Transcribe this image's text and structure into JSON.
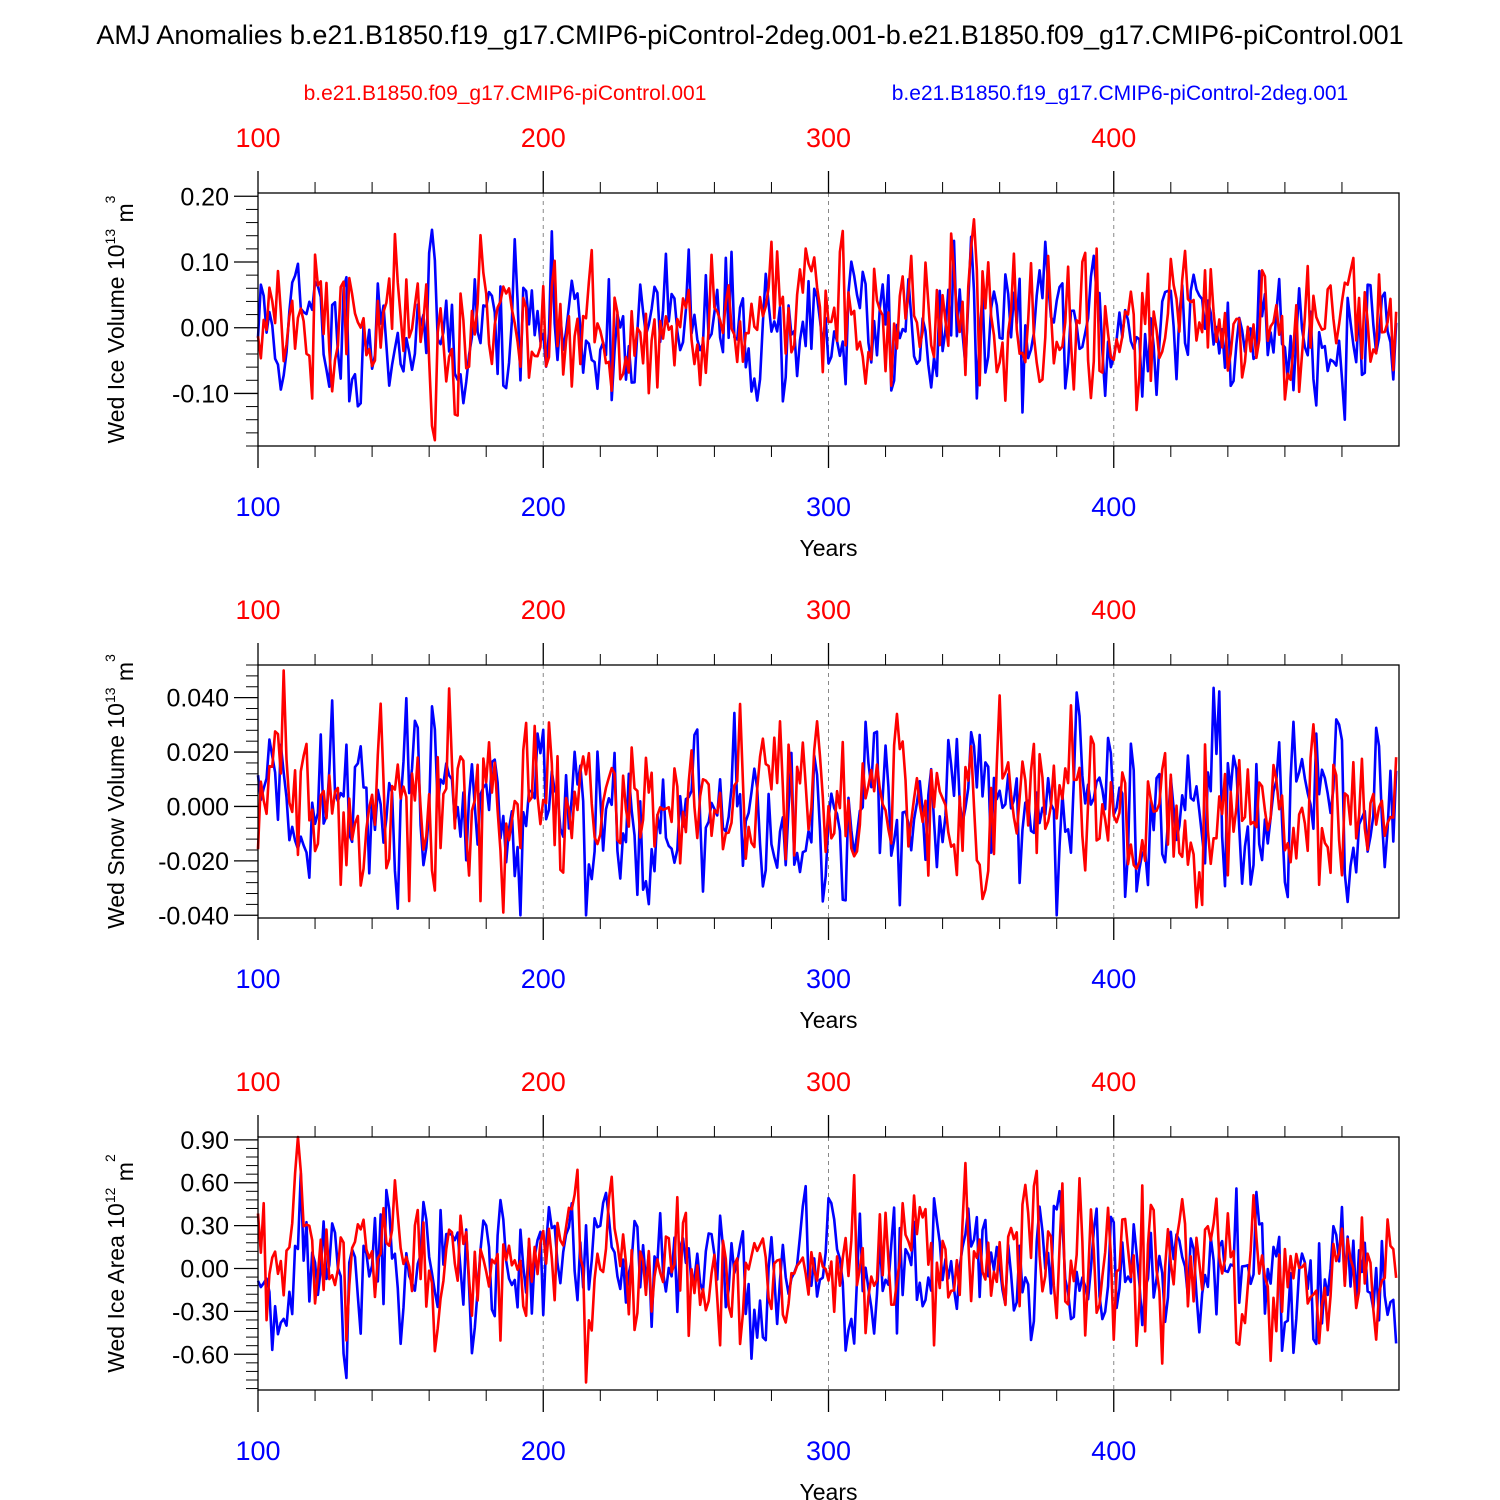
{
  "figure": {
    "title": "AMJ Anomalies b.e21.B1850.f19_g17.CMIP6-piControl-2deg.001-b.e21.B1850.f09_g17.CMIP6-piControl.001",
    "legend_red": "b.e21.B1850.f09_g17.CMIP6-piControl.001",
    "legend_blue": "b.e21.B1850.f19_g17.CMIP6-piControl-2deg.001",
    "colors": {
      "red": "#ff0000",
      "blue": "#0000ff",
      "axis": "#000000",
      "grid": "#888888"
    }
  },
  "chart_data": [
    {
      "type": "line",
      "ylabel": "Wed Ice Volume 10",
      "ylabel_exp": "13",
      "ylabel_unit": "m",
      "ylabel_unit_exp": "3",
      "xlabel": "Years",
      "xlim": [
        100,
        500
      ],
      "ylim": [
        -0.18,
        0.205
      ],
      "yticks": [
        -0.1,
        0.0,
        0.1,
        0.2
      ],
      "ytick_labels": [
        "-0.10",
        "0.00",
        "0.10",
        "0.20"
      ],
      "yminor_step": 0.02,
      "xticks": [
        100,
        200,
        300,
        400
      ],
      "xtick_labels": [
        "100",
        "200",
        "300",
        "400"
      ],
      "xminor_step": 20,
      "x_start": 100,
      "series": [
        {
          "name": "b.e21.B1850.f19_g17.CMIP6-piControl-2deg.001",
          "color": "blue",
          "amp": 0.055,
          "seed": 11,
          "clip": [
            -0.14,
            0.2
          ]
        },
        {
          "name": "b.e21.B1850.f09_g17.CMIP6-piControl.001",
          "color": "red",
          "amp": 0.055,
          "seed": 27,
          "clip": [
            -0.18,
            0.165
          ]
        }
      ]
    },
    {
      "type": "line",
      "ylabel": "Wed Snow Volume 10",
      "ylabel_exp": "13",
      "ylabel_unit": "m",
      "ylabel_unit_exp": "3",
      "xlabel": "Years",
      "xlim": [
        100,
        500
      ],
      "ylim": [
        -0.041,
        0.052
      ],
      "yticks": [
        -0.04,
        -0.02,
        0.0,
        0.02,
        0.04
      ],
      "ytick_labels": [
        "-0.040",
        "-0.020",
        "0.000",
        "0.020",
        "0.040"
      ],
      "yminor_step": 0.004,
      "xticks": [
        100,
        200,
        300,
        400
      ],
      "xtick_labels": [
        "100",
        "200",
        "300",
        "400"
      ],
      "xminor_step": 20,
      "x_start": 100,
      "series": [
        {
          "name": "b.e21.B1850.f19_g17.CMIP6-piControl-2deg.001",
          "color": "blue",
          "amp": 0.016,
          "seed": 43,
          "clip": [
            -0.04,
            0.047
          ]
        },
        {
          "name": "b.e21.B1850.f09_g17.CMIP6-piControl.001",
          "color": "red",
          "amp": 0.014,
          "seed": 59,
          "clip": [
            -0.039,
            0.05
          ]
        }
      ]
    },
    {
      "type": "line",
      "ylabel": "Wed Ice Area 10",
      "ylabel_exp": "12",
      "ylabel_unit": "m",
      "ylabel_unit_exp": "2",
      "xlabel": "Years",
      "xlim": [
        100,
        500
      ],
      "ylim": [
        -0.85,
        0.92
      ],
      "yticks": [
        -0.6,
        -0.3,
        0.0,
        0.3,
        0.6,
        0.9
      ],
      "ytick_labels": [
        "-0.60",
        "-0.30",
        "0.00",
        "0.30",
        "0.60",
        "0.90"
      ],
      "yminor_step": 0.06,
      "xticks": [
        100,
        200,
        300,
        400
      ],
      "xtick_labels": [
        "100",
        "200",
        "300",
        "400"
      ],
      "xminor_step": 20,
      "x_start": 100,
      "series": [
        {
          "name": "b.e21.B1850.f19_g17.CMIP6-piControl-2deg.001",
          "color": "blue",
          "amp": 0.27,
          "seed": 71,
          "clip": [
            -0.85,
            0.89
          ]
        },
        {
          "name": "b.e21.B1850.f09_g17.CMIP6-piControl.001",
          "color": "red",
          "amp": 0.27,
          "seed": 97,
          "clip": [
            -0.85,
            0.92
          ]
        }
      ]
    }
  ]
}
